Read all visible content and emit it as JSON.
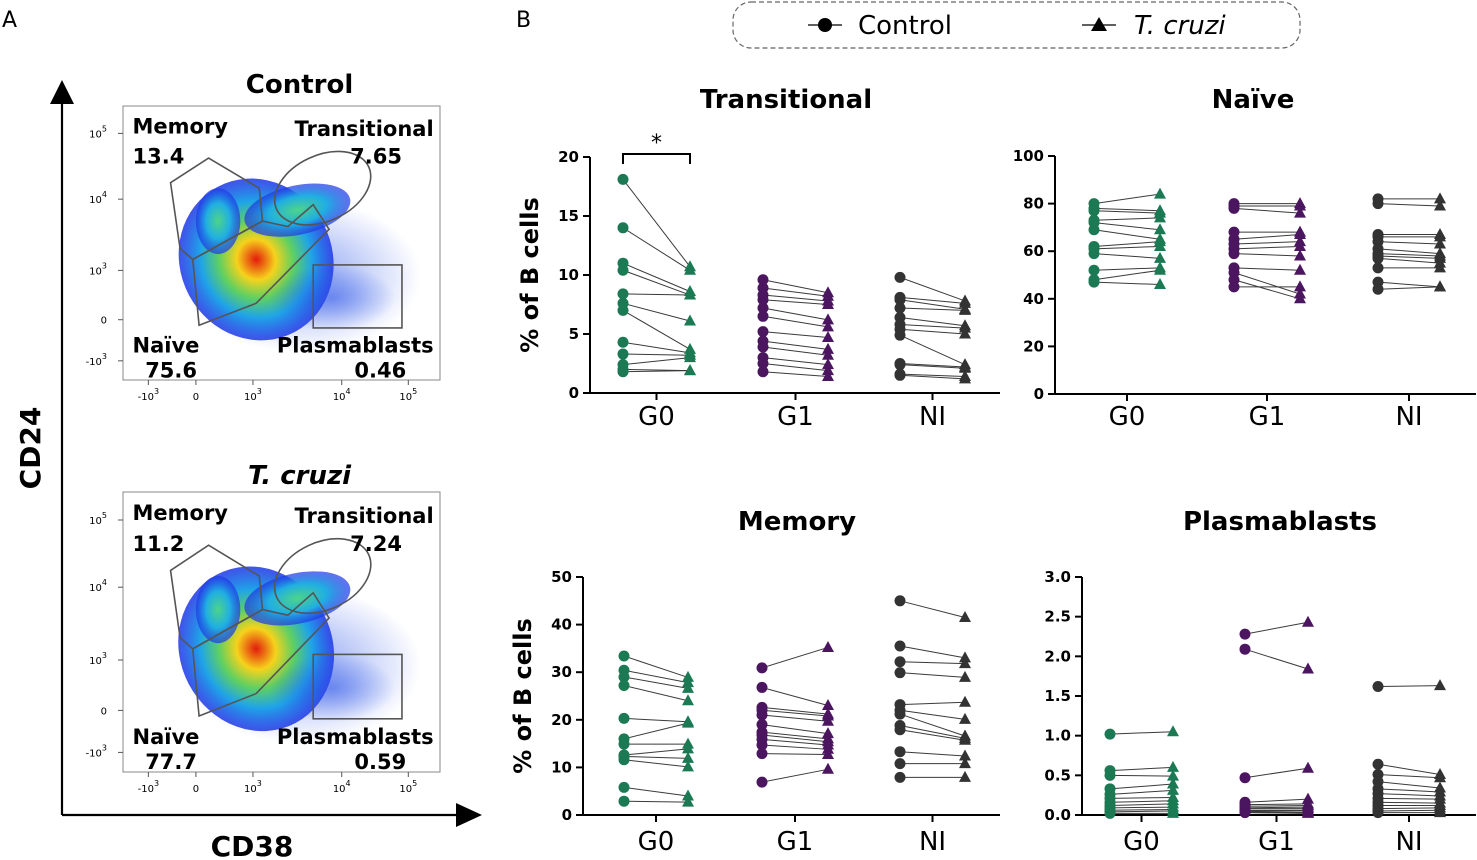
{
  "panel_labels": {
    "a": "A",
    "b": "B"
  },
  "legend": {
    "control_label": "Control",
    "tcruzi_label": "T. cruzi"
  },
  "colors": {
    "G0": "#1b7a53",
    "G1": "#4b165f",
    "NI": "#333333",
    "line": "#3a3a3a",
    "gate": "#555555"
  },
  "flow": {
    "y_axis_label": "CD24",
    "x_axis_label": "CD38",
    "x_ticks": [
      "-10",
      "0",
      "10",
      "10",
      "10"
    ],
    "x_tick_exps": [
      "3",
      "",
      "3",
      "4",
      "5"
    ],
    "y_ticks": [
      "10",
      "10",
      "10",
      "0",
      "-10"
    ],
    "y_tick_exps": [
      "5",
      "4",
      "3",
      "",
      "3"
    ],
    "plots": [
      {
        "title": "Control",
        "title_italic": false,
        "gates": {
          "memory": {
            "name": "Memory",
            "value": "13.4"
          },
          "transitional": {
            "name": "Transitional",
            "value": "7.65"
          },
          "naive": {
            "name": "Naïve",
            "value": "75.6"
          },
          "plasmablasts": {
            "name": "Plasmablasts",
            "value": "0.46"
          }
        }
      },
      {
        "title": "T. cruzi",
        "title_italic": true,
        "gates": {
          "memory": {
            "name": "Memory",
            "value": "11.2"
          },
          "transitional": {
            "name": "Transitional",
            "value": "7.24"
          },
          "naive": {
            "name": "Naïve",
            "value": "77.7"
          },
          "plasmablasts": {
            "name": "Plasmablasts",
            "value": "0.59"
          }
        }
      }
    ]
  },
  "chart_data": [
    {
      "type": "scatter",
      "title": "Transitional",
      "ylabel": "% of B cells",
      "ylim": [
        0,
        20
      ],
      "yticks": [
        "0",
        "5",
        "10",
        "15",
        "20"
      ],
      "categories": [
        "G0",
        "G1",
        "NI"
      ],
      "significance": {
        "group": "G0",
        "label": "*"
      },
      "pairs": {
        "G0": [
          [
            18.1,
            10.7
          ],
          [
            14.0,
            10.4
          ],
          [
            11.0,
            8.6
          ],
          [
            10.4,
            8.3
          ],
          [
            8.4,
            8.3
          ],
          [
            7.6,
            6.1
          ],
          [
            7.0,
            3.7
          ],
          [
            4.3,
            3.4
          ],
          [
            3.3,
            3.2
          ],
          [
            2.4,
            3.0
          ],
          [
            2.0,
            1.9
          ],
          [
            1.8,
            1.9
          ]
        ],
        "G1": [
          [
            9.6,
            8.5
          ],
          [
            8.9,
            8.2
          ],
          [
            8.3,
            7.8
          ],
          [
            7.9,
            7.5
          ],
          [
            7.2,
            6.2
          ],
          [
            6.5,
            5.6
          ],
          [
            5.2,
            4.7
          ],
          [
            4.4,
            3.7
          ],
          [
            3.9,
            3.2
          ],
          [
            3.0,
            2.4
          ],
          [
            2.5,
            1.9
          ],
          [
            1.8,
            1.4
          ]
        ],
        "NI": [
          [
            9.8,
            7.8
          ],
          [
            8.1,
            7.6
          ],
          [
            7.9,
            7.1
          ],
          [
            7.2,
            7.0
          ],
          [
            6.4,
            5.7
          ],
          [
            5.8,
            5.5
          ],
          [
            5.4,
            5.0
          ],
          [
            4.9,
            2.4
          ],
          [
            2.5,
            2.2
          ],
          [
            2.4,
            2.1
          ],
          [
            1.6,
            1.4
          ],
          [
            1.5,
            1.2
          ]
        ]
      }
    },
    {
      "type": "scatter",
      "title": "Naïve",
      "ylabel": "",
      "ylim": [
        0,
        100
      ],
      "yticks": [
        "0",
        "20",
        "40",
        "60",
        "80",
        "100"
      ],
      "categories": [
        "G0",
        "G1",
        "NI"
      ],
      "pairs": {
        "G0": [
          [
            80,
            84
          ],
          [
            78,
            77
          ],
          [
            77,
            76
          ],
          [
            73,
            74
          ],
          [
            72,
            69
          ],
          [
            69,
            65
          ],
          [
            62,
            64
          ],
          [
            61,
            62
          ],
          [
            59,
            57
          ],
          [
            52,
            53
          ],
          [
            48,
            52
          ],
          [
            47,
            46
          ]
        ],
        "G1": [
          [
            80,
            80
          ],
          [
            79,
            79
          ],
          [
            78,
            76
          ],
          [
            68,
            68
          ],
          [
            65,
            67
          ],
          [
            63,
            64
          ],
          [
            61,
            62
          ],
          [
            59,
            58
          ],
          [
            53,
            52
          ],
          [
            51,
            42
          ],
          [
            48,
            40
          ],
          [
            45,
            45
          ]
        ],
        "NI": [
          [
            82,
            82
          ],
          [
            80,
            79
          ],
          [
            67,
            67
          ],
          [
            66,
            66
          ],
          [
            64,
            63
          ],
          [
            61,
            59
          ],
          [
            59,
            58
          ],
          [
            58,
            57
          ],
          [
            57,
            55
          ],
          [
            53,
            53
          ],
          [
            47,
            45
          ],
          [
            44,
            45
          ]
        ]
      }
    },
    {
      "type": "scatter",
      "title": "Memory",
      "ylabel": "% of B cells",
      "ylim": [
        0,
        50
      ],
      "yticks": [
        "0",
        "10",
        "20",
        "30",
        "40",
        "50"
      ],
      "categories": [
        "G0",
        "G1",
        "NI"
      ],
      "pairs": {
        "G0": [
          [
            33.4,
            28.9
          ],
          [
            30.4,
            27.8
          ],
          [
            29.0,
            26.6
          ],
          [
            27.2,
            24.0
          ],
          [
            20.3,
            19.6
          ],
          [
            16.0,
            19.3
          ],
          [
            14.9,
            14.9
          ],
          [
            12.6,
            13.9
          ],
          [
            12.3,
            11.9
          ],
          [
            11.6,
            10.1
          ],
          [
            5.8,
            4.0
          ],
          [
            2.9,
            2.7
          ]
        ],
        "G1": [
          [
            30.9,
            35.2
          ],
          [
            26.8,
            23.0
          ],
          [
            22.6,
            21.2
          ],
          [
            22.0,
            20.8
          ],
          [
            21.0,
            19.7
          ],
          [
            19.0,
            17.1
          ],
          [
            17.4,
            16.0
          ],
          [
            16.8,
            15.4
          ],
          [
            15.9,
            14.7
          ],
          [
            14.7,
            13.8
          ],
          [
            12.9,
            12.7
          ],
          [
            6.9,
            9.6
          ]
        ],
        "NI": [
          [
            45.0,
            41.5
          ],
          [
            35.5,
            33.0
          ],
          [
            32.2,
            31.8
          ],
          [
            29.9,
            28.9
          ],
          [
            23.2,
            23.7
          ],
          [
            22.0,
            20.1
          ],
          [
            21.2,
            16.6
          ],
          [
            18.8,
            16.1
          ],
          [
            17.9,
            15.7
          ],
          [
            13.3,
            12.4
          ],
          [
            10.8,
            10.8
          ],
          [
            7.9,
            7.9
          ]
        ]
      }
    },
    {
      "type": "scatter",
      "title": "Plasmablasts",
      "ylabel": "",
      "ylim": [
        0,
        3
      ],
      "yticks": [
        "0.0",
        "0.5",
        "1.0",
        "1.5",
        "2.0",
        "2.5",
        "3.0"
      ],
      "categories": [
        "G0",
        "G1",
        "NI"
      ],
      "pairs": {
        "G0": [
          [
            1.02,
            1.05
          ],
          [
            0.56,
            0.6
          ],
          [
            0.5,
            0.49
          ],
          [
            0.33,
            0.39
          ],
          [
            0.26,
            0.31
          ],
          [
            0.21,
            0.22
          ],
          [
            0.16,
            0.18
          ],
          [
            0.12,
            0.14
          ],
          [
            0.09,
            0.1
          ],
          [
            0.06,
            0.07
          ],
          [
            0.04,
            0.05
          ],
          [
            0.02,
            0.02
          ]
        ],
        "G1": [
          [
            2.28,
            2.43
          ],
          [
            2.09,
            1.84
          ],
          [
            0.47,
            0.59
          ],
          [
            0.16,
            0.2
          ],
          [
            0.13,
            0.14
          ],
          [
            0.11,
            0.12
          ],
          [
            0.09,
            0.1
          ],
          [
            0.08,
            0.08
          ],
          [
            0.06,
            0.06
          ],
          [
            0.05,
            0.05
          ],
          [
            0.04,
            0.03
          ],
          [
            0.03,
            0.02
          ]
        ],
        "NI": [
          [
            1.62,
            1.63
          ],
          [
            0.64,
            0.51
          ],
          [
            0.51,
            0.47
          ],
          [
            0.42,
            0.34
          ],
          [
            0.33,
            0.29
          ],
          [
            0.27,
            0.24
          ],
          [
            0.21,
            0.2
          ],
          [
            0.16,
            0.15
          ],
          [
            0.12,
            0.12
          ],
          [
            0.08,
            0.09
          ],
          [
            0.05,
            0.06
          ],
          [
            0.03,
            0.03
          ]
        ]
      }
    }
  ]
}
